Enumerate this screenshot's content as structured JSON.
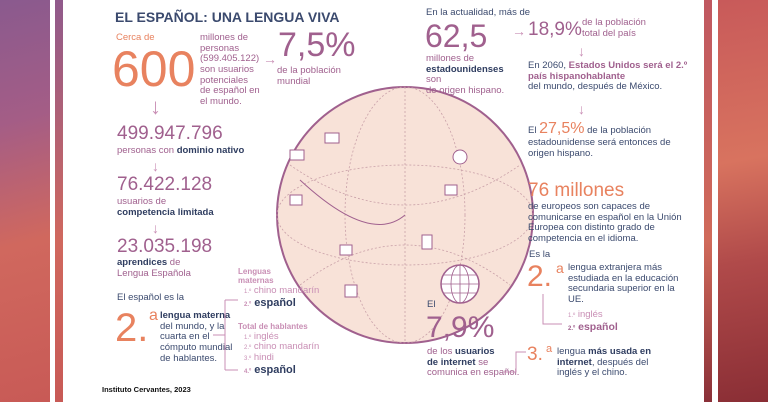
{
  "title": "EL ESPAÑOL: UNA LENGUA VIVA",
  "colors": {
    "orange": "#e8825f",
    "purple": "#a0608e",
    "navy": "#3b4a6e",
    "pink": "#c98fb5",
    "globe": "#f8e2d8"
  },
  "users": {
    "pre": "Cerca de",
    "big": "600",
    "desc": "millones de personas (599.405.122) son usuarios potenciales de español en el mundo.",
    "pct": "7,5%",
    "pct_desc": "de la población mundial"
  },
  "native": {
    "num": "499.947.796",
    "pre": "personas con ",
    "bold": "dominio nativo"
  },
  "limited": {
    "num": "76.422.128",
    "pre": "usuarios de",
    "bold": "competencia limitada"
  },
  "learners": {
    "num": "23.035.198",
    "bold": "aprendices",
    "post": " de",
    "line2": "Lengua Española"
  },
  "mother": {
    "pre": "El español es la",
    "big": "2.",
    "sup": "a",
    "bold": "lengua materna",
    "desc": "del mundo, y la cuarta en el cómputo mundial de hablantes."
  },
  "ranking_mother": {
    "title": "Lenguas maternas",
    "items": [
      {
        "n": "1.º",
        "l": "chino mandarín"
      },
      {
        "n": "2.º",
        "l": "español"
      }
    ]
  },
  "ranking_total": {
    "title": "Total de hablantes",
    "items": [
      {
        "n": "1.º",
        "l": "inglés"
      },
      {
        "n": "2.º",
        "l": "chino mandarín"
      },
      {
        "n": "3.º",
        "l": "hindi"
      },
      {
        "n": "4.º",
        "l": "español"
      }
    ]
  },
  "source": "Instituto Cervantes, 2023",
  "usa": {
    "pre": "En la actualidad, más de",
    "big": "62,5",
    "l1": "millones de",
    "bold": "estadounidenses",
    "post": " son",
    "l3": "de origen hispano.",
    "pct": "18,9%",
    "pct_desc": "de la población total del país"
  },
  "y2060": {
    "pre": "En 2060, ",
    "hl": "Estados Unidos será el 2.º país hispanohablante",
    "post": "del mundo, después de México."
  },
  "pct275": {
    "pre": "El ",
    "big": "27,5%",
    "post": " de la población",
    "rest": "estadounidense será entonces de origen hispano."
  },
  "eu": {
    "big": "76 millones",
    "desc": "de europeos son capaces de comunicarse en español en la Unión Europea con distinto grado de competencia en el idioma."
  },
  "foreign": {
    "pre": "Es la",
    "big": "2.",
    "sup": "a",
    "desc": "lengua extranjera más estudiada en la educación secundaria superior en la UE.",
    "items": [
      {
        "n": "1.º",
        "l": "inglés"
      },
      {
        "n": "2.º",
        "l": "español"
      }
    ]
  },
  "internet": {
    "pre": "El",
    "big": "7,9%",
    "p1": "de los ",
    "b1": "usuarios",
    "b2": "de internet",
    "p2": " se",
    "p3": "comunica en español."
  },
  "third": {
    "big": "3.",
    "sup": "a",
    "p1": "lengua ",
    "b1": "más usada en",
    "b2": "internet",
    "p2": ", después del",
    "p3": "inglés y el chino."
  }
}
